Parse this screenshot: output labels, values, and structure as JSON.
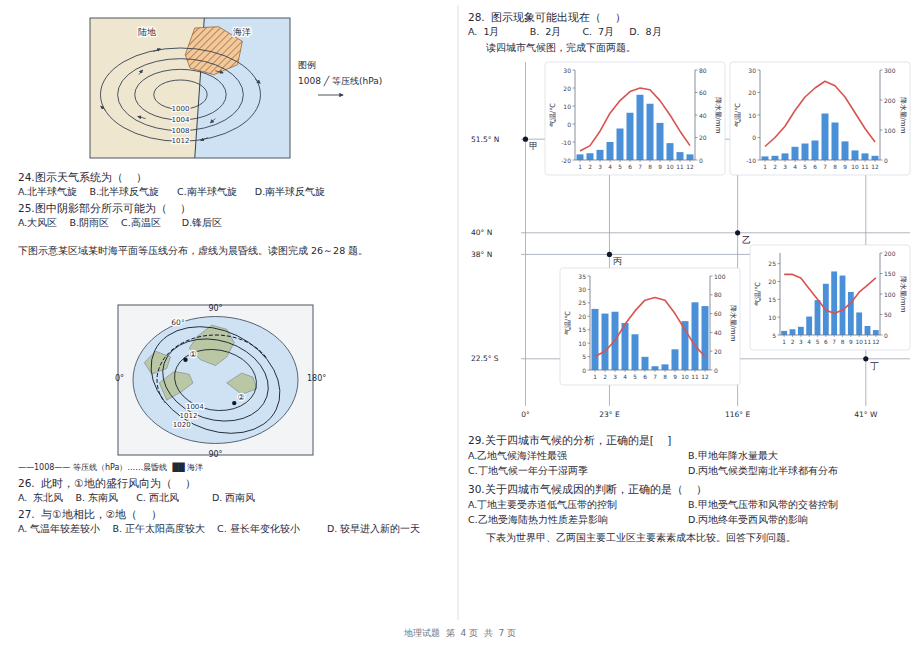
{
  "chart_data": [
    {
      "type": "diagram",
      "annotations": [
        "陆地",
        "海洋",
        "1000",
        "1004",
        "1008",
        "1012",
        "图例",
        "1008 ╱ 等压线(hPa)"
      ]
    },
    {
      "type": "diagram",
      "annotations": [
        "90°",
        "0°",
        "180°",
        "90°",
        "60°",
        "1004",
        "1012",
        "1020",
        "①",
        "②",
        "——1008—— 等压线（hPa）……晨昏线  ██ 海洋"
      ]
    },
    {
      "type": "map",
      "annotations": [
        "51.5° N",
        "40° N",
        "38° N",
        "22.5° S",
        "0°",
        "23° E",
        "116° E",
        "41° W",
        "甲",
        "乙",
        "丙",
        "丁"
      ]
    },
    {
      "type": "combo",
      "categories": [
        "1",
        "2",
        "3",
        "4",
        "5",
        "6",
        "7",
        "8",
        "9",
        "10",
        "11",
        "12"
      ],
      "series": [
        {
          "type": "bar",
          "axis": "y2",
          "color": "#4a90d9",
          "values": [
            5,
            6,
            9,
            16,
            28,
            42,
            58,
            50,
            33,
            15,
            7,
            5
          ]
        },
        {
          "type": "line",
          "color": "#d9534f",
          "values": [
            -15,
            -12,
            -4,
            6,
            13,
            18,
            20,
            19,
            13,
            5,
            -4,
            -12
          ]
        }
      ],
      "ylim": [
        -20,
        30
      ],
      "yticks": [
        -20,
        -10,
        0,
        10,
        20,
        30
      ],
      "y2lim": [
        0,
        80
      ],
      "y2ticks": [
        0,
        20,
        40,
        60,
        80
      ],
      "y_label": "气温/℃",
      "y2_label": "降水量/mm"
    },
    {
      "type": "combo",
      "categories": [
        "1",
        "2",
        "3",
        "4",
        "5",
        "6",
        "7",
        "8",
        "9",
        "10",
        "11",
        "12"
      ],
      "series": [
        {
          "type": "bar",
          "axis": "y2",
          "color": "#4a90d9",
          "values": [
            12,
            14,
            22,
            44,
            55,
            65,
            155,
            125,
            62,
            32,
            22,
            14
          ]
        },
        {
          "type": "line",
          "color": "#d9534f",
          "values": [
            -4,
            0,
            5,
            12,
            18,
            22,
            25,
            23,
            18,
            11,
            4,
            -2
          ]
        }
      ],
      "ylim": [
        -10,
        30
      ],
      "yticks": [
        -10,
        0,
        10,
        20,
        30
      ],
      "y2lim": [
        0,
        300
      ],
      "y2ticks": [
        0,
        100,
        200,
        300
      ],
      "y_label": "气温/℃",
      "y2_label": "降水量/mm"
    },
    {
      "type": "combo",
      "categories": [
        "1",
        "2",
        "3",
        "4",
        "5",
        "6",
        "7",
        "8",
        "9",
        "10",
        "11",
        "12"
      ],
      "series": [
        {
          "type": "bar",
          "axis": "y2",
          "color": "#4a90d9",
          "values": [
            65,
            60,
            62,
            50,
            38,
            14,
            4,
            6,
            22,
            52,
            72,
            68
          ]
        },
        {
          "type": "line",
          "color": "#d9534f",
          "values": [
            5,
            7,
            11,
            17,
            22,
            26,
            27,
            26,
            21,
            15,
            9,
            5
          ]
        }
      ],
      "ylim": [
        0,
        35
      ],
      "yticks": [
        0,
        5,
        10,
        15,
        20,
        25,
        30,
        35
      ],
      "y2lim": [
        0,
        100
      ],
      "y2ticks": [
        0,
        20,
        40,
        60,
        80,
        100
      ],
      "y_label": "气温/℃",
      "y2_label": "降水量/mm"
    },
    {
      "type": "combo",
      "categories": [
        "1",
        "2",
        "3",
        "4",
        "5",
        "6",
        "7",
        "8",
        "9",
        "10",
        "11",
        "12"
      ],
      "series": [
        {
          "type": "bar",
          "axis": "y2",
          "color": "#4a90d9",
          "values": [
            10,
            14,
            20,
            45,
            85,
            125,
            155,
            145,
            105,
            55,
            22,
            12
          ]
        },
        {
          "type": "line",
          "color": "#d9534f",
          "values": [
            22,
            22,
            21,
            18,
            15,
            12,
            11,
            12,
            14,
            17,
            19,
            21
          ]
        }
      ],
      "ylim": [
        5,
        28
      ],
      "yticks": [
        5,
        10,
        15,
        20,
        25
      ],
      "y2lim": [
        0,
        200
      ],
      "y2ticks": [
        0,
        50,
        100,
        150,
        200
      ],
      "y_label": "气温/℃",
      "y2_label": "降水量/mm"
    },
    {
      "type": "text",
      "annotations": [
        "24.图示天气系统为（    ）",
        "A.北半球气旋    B.北半球反气旋      C.南半球气旋      D.南半球反气旋",
        "25.图中阴影部分所示可能为（    ）",
        "A.大风区    B.阴雨区    C.高温区       D.锋后区",
        "下图示意某区域某时海平面等压线分布，虚线为晨昏线。读图完成 26～28 题。",
        "26.  此时，①地的盛行风向为（    ）",
        "A.  东北风    B. 东南风      C. 西北风           D. 西南风",
        "27.  与①地相比，②地（    ）",
        "A. 气温年较差较小    B. 正午太阳高度较大    C. 昼长年变化较小         D. 较早进入新的一天",
        "28.  图示现象可能出现在（    ）",
        "A.  1月          B.  2月       C.  7月     D.  8月",
        "读四城市气候图，完成下面两题。",
        "29.关于四城市气候的分析，正确的是[    ]",
        "A.乙地气候海洋性最强",
        "B.甲地年降水量最大",
        "C.丁地气候一年分干湿两季",
        "D.丙地气候类型南北半球都有分布",
        "30.关于四城市气候成因的判断，正确的是（    ）",
        "A.丁地主要受赤道低气压带的控制",
        "B.甲地受气压带和风带的交替控制",
        "C.乙地受海陆热力性质差异影响",
        "D.丙地终年受西风带的影响",
        "下表为世界甲、乙两国主要工业区主要素素成本比较。回答下列问题。",
        "地理试题  第  4 页  共  7 页"
      ]
    }
  ]
}
